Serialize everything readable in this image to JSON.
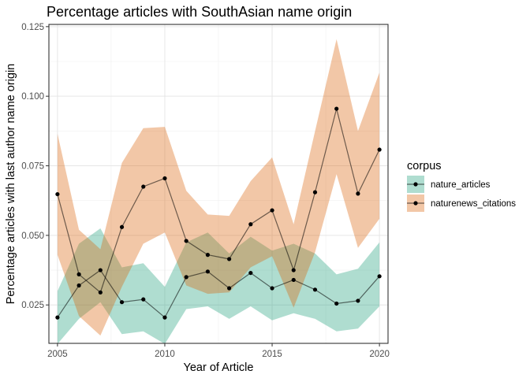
{
  "chart_data": {
    "type": "line",
    "title": "Percentage articles with SouthAsian name origin",
    "xlabel": "Year of Article",
    "ylabel": "Percentage articles with last author name origin",
    "xlim": [
      2004.6,
      2020.4
    ],
    "ylim": [
      0.0112,
      0.1258
    ],
    "x_ticks": [
      2005,
      2010,
      2015,
      2020
    ],
    "y_ticks": [
      0.025,
      0.05,
      0.075,
      0.1,
      0.125
    ],
    "y_tick_labels": [
      "0.025",
      "0.050",
      "0.075",
      "0.100",
      "0.125"
    ],
    "grid": true,
    "legend": {
      "title": "corpus",
      "position": "right"
    },
    "x": [
      2005,
      2006,
      2007,
      2008,
      2009,
      2010,
      2011,
      2012,
      2013,
      2014,
      2015,
      2016,
      2017,
      2018,
      2019,
      2020
    ],
    "series": [
      {
        "name": "nature_articles",
        "color": "#1b9e77",
        "values": [
          0.0205,
          0.032,
          0.0375,
          0.026,
          0.027,
          0.0205,
          0.035,
          0.037,
          0.031,
          0.0365,
          0.031,
          0.034,
          0.0305,
          0.0255,
          0.0265,
          0.0353
        ],
        "lower": [
          0.011,
          0.02,
          0.026,
          0.0145,
          0.0155,
          0.011,
          0.0235,
          0.0245,
          0.02,
          0.0245,
          0.0195,
          0.022,
          0.02,
          0.0155,
          0.0165,
          0.0245
        ],
        "upper": [
          0.03,
          0.047,
          0.0525,
          0.0385,
          0.04,
          0.0315,
          0.0475,
          0.051,
          0.0435,
          0.0495,
          0.0445,
          0.047,
          0.0435,
          0.036,
          0.038,
          0.0475
        ]
      },
      {
        "name": "naturenews_citations",
        "color": "#d95f02",
        "values": [
          0.0648,
          0.036,
          0.0295,
          0.053,
          0.0675,
          0.0705,
          0.048,
          0.043,
          0.0415,
          0.054,
          0.059,
          0.0375,
          0.0655,
          0.0955,
          0.065,
          0.0808
        ],
        "lower": [
          0.043,
          0.021,
          0.014,
          0.0315,
          0.047,
          0.051,
          0.032,
          0.029,
          0.0295,
          0.0385,
          0.0425,
          0.024,
          0.044,
          0.072,
          0.0455,
          0.056
        ],
        "upper": [
          0.0865,
          0.052,
          0.045,
          0.076,
          0.0885,
          0.089,
          0.066,
          0.0575,
          0.057,
          0.0695,
          0.078,
          0.054,
          0.0875,
          0.1205,
          0.0875,
          0.1085
        ]
      }
    ]
  }
}
